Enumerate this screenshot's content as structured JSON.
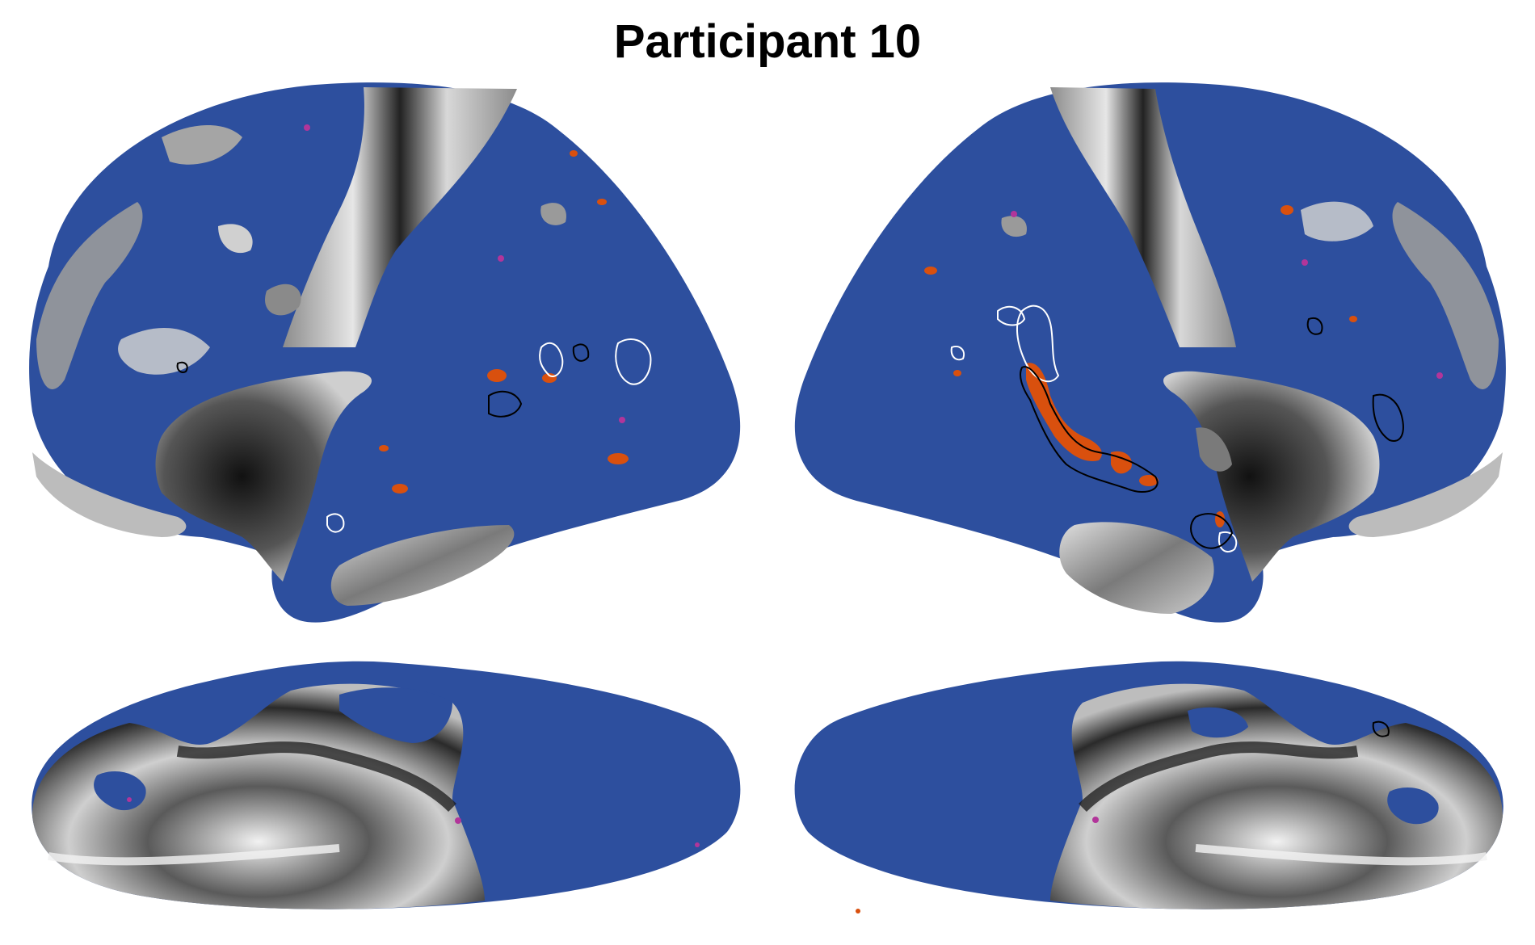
{
  "title": "Participant 10",
  "colors": {
    "cortex_blue": "#2d4f9e",
    "sulcus_dark": "#2a2a2a",
    "gyrus_light": "#e6e6e6",
    "mid_gray": "#8c8c8c",
    "activation_orange": "#d9500e",
    "activation_magenta": "#b2359a",
    "outline_white": "#ffffff",
    "outline_black": "#000000",
    "background": "#ffffff"
  },
  "views": [
    "left-lateral",
    "right-lateral",
    "left-medial",
    "right-medial"
  ]
}
